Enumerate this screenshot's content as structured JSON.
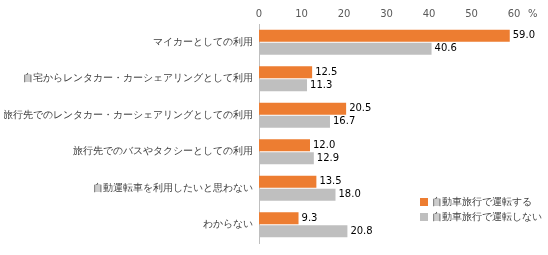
{
  "chart_data": {
    "type": "bar",
    "orientation": "horizontal",
    "categories": [
      "マイカーとしての利用",
      "自宅からレンタカー・カーシェアリングとして利用",
      "旅行先でのレンタカー・カーシェアリングとしての利用",
      "旅行先でのバスやタクシーとしての利用",
      "自動運転車を利用したいと思わない",
      "わからない"
    ],
    "series": [
      {
        "name": "自動車旅行で運転する",
        "color": "#ED7D31",
        "values": [
          59.0,
          12.5,
          20.5,
          12.0,
          13.5,
          9.3
        ],
        "value_labels": [
          "59.0",
          "12.5",
          "20.5",
          "12.0",
          "13.5",
          "9.3"
        ]
      },
      {
        "name": "自動車旅行で運転しない",
        "color": "#BFBFBF",
        "values": [
          40.6,
          11.3,
          16.7,
          12.9,
          18.0,
          20.8
        ],
        "value_labels": [
          "40.6",
          "11.3",
          "16.7",
          "12.9",
          "18.0",
          "20.8"
        ]
      }
    ],
    "x_label": "%",
    "xlim": [
      0,
      60
    ],
    "xticks": [
      0,
      10,
      20,
      30,
      40,
      50,
      60
    ],
    "grid": false,
    "legend": "lower right",
    "data_labels": true
  }
}
